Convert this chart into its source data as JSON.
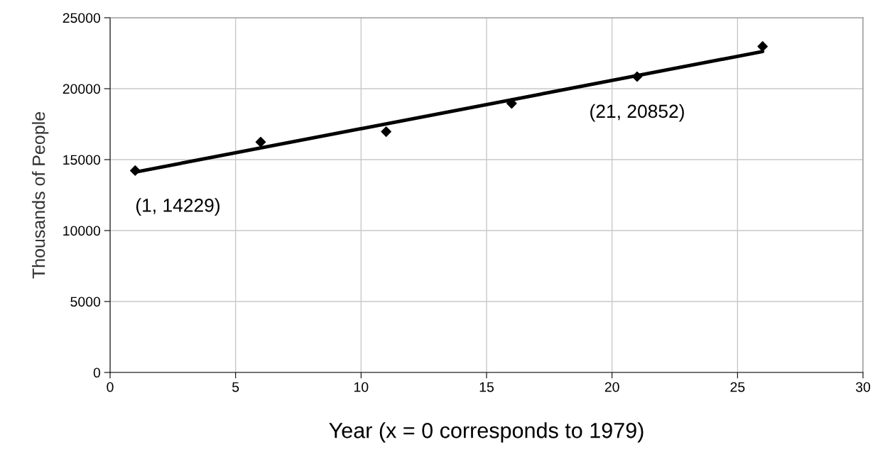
{
  "chart_data": {
    "type": "scatter",
    "xlabel": "Year (x = 0 corresponds to 1979)",
    "ylabel": "Thousands of People",
    "series": [
      {
        "color": "#000000",
        "marker": "diamond",
        "x": [
          1,
          6,
          11,
          16,
          21,
          26
        ],
        "values": [
          14229,
          16240,
          16970,
          18960,
          20852,
          22980
        ]
      },
      {
        "type": "line",
        "color": "#000000",
        "marker": "none",
        "line_style": "solid",
        "x": [
          1,
          26
        ],
        "values": [
          14120,
          22620
        ]
      }
    ],
    "annotations": [
      {
        "text": "(1, 14229)",
        "x": 1,
        "y": 14229
      },
      {
        "text": "(21, 20852)",
        "x": 21,
        "y": 20852
      }
    ],
    "xlim": [
      0,
      30
    ],
    "xticks": [
      0,
      5,
      10,
      15,
      20,
      25,
      30
    ],
    "ylim": [
      0,
      25000
    ],
    "yticks": [
      0,
      5000,
      10000,
      15000,
      20000,
      25000
    ],
    "grid": true,
    "legend": false
  }
}
